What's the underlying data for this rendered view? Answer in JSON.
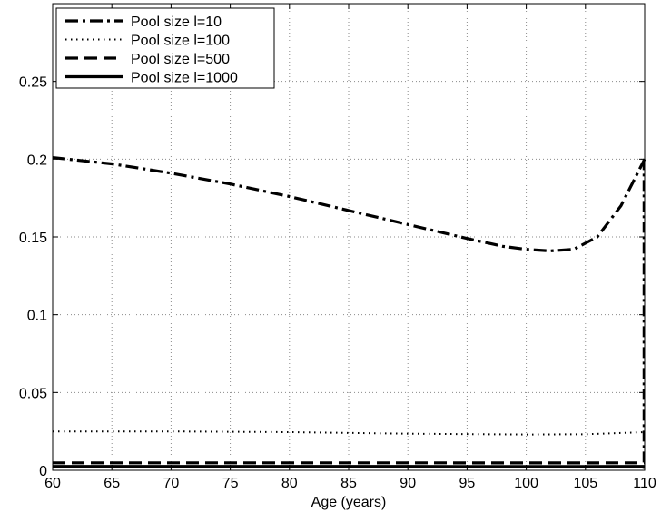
{
  "chart_data": {
    "type": "line",
    "title": "",
    "xlabel": "Age (years)",
    "ylabel": "",
    "xlim": [
      60,
      110
    ],
    "ylim": [
      0,
      0.3
    ],
    "grid": true,
    "legend_position": "top-left",
    "x_ticks": [
      60,
      65,
      70,
      75,
      80,
      85,
      90,
      95,
      100,
      105,
      110
    ],
    "y_ticks": [
      0,
      0.05,
      0.1,
      0.15,
      0.2,
      0.25
    ],
    "x_tick_labels": [
      "60",
      "65",
      "70",
      "75",
      "80",
      "85",
      "90",
      "95",
      "100",
      "105",
      "110"
    ],
    "y_tick_labels": [
      "0",
      "0.05",
      "0.1",
      "0.15",
      "0.2",
      "0.25"
    ],
    "series": [
      {
        "name": "Pool size l=10",
        "style": "dashdot",
        "x": [
          60,
          65,
          70,
          75,
          80,
          85,
          90,
          95,
          98,
          100,
          102,
          104,
          106,
          108,
          110
        ],
        "y": [
          0.201,
          0.197,
          0.191,
          0.184,
          0.176,
          0.167,
          0.158,
          0.149,
          0.144,
          0.142,
          0.141,
          0.142,
          0.15,
          0.17,
          0.2
        ]
      },
      {
        "name": "Pool size l=100",
        "style": "dotted",
        "x": [
          60,
          70,
          80,
          90,
          100,
          105,
          110
        ],
        "y": [
          0.025,
          0.025,
          0.0245,
          0.0235,
          0.023,
          0.0232,
          0.0245
        ]
      },
      {
        "name": "Pool size l=500",
        "style": "dashed",
        "x": [
          60,
          70,
          80,
          90,
          100,
          110
        ],
        "y": [
          0.0048,
          0.0048,
          0.0048,
          0.0048,
          0.0047,
          0.0048
        ]
      },
      {
        "name": "Pool size l=1000",
        "style": "solid",
        "x": [
          60,
          70,
          80,
          90,
          100,
          110
        ],
        "y": [
          0.0025,
          0.0025,
          0.0025,
          0.0025,
          0.0024,
          0.0025
        ]
      }
    ]
  }
}
